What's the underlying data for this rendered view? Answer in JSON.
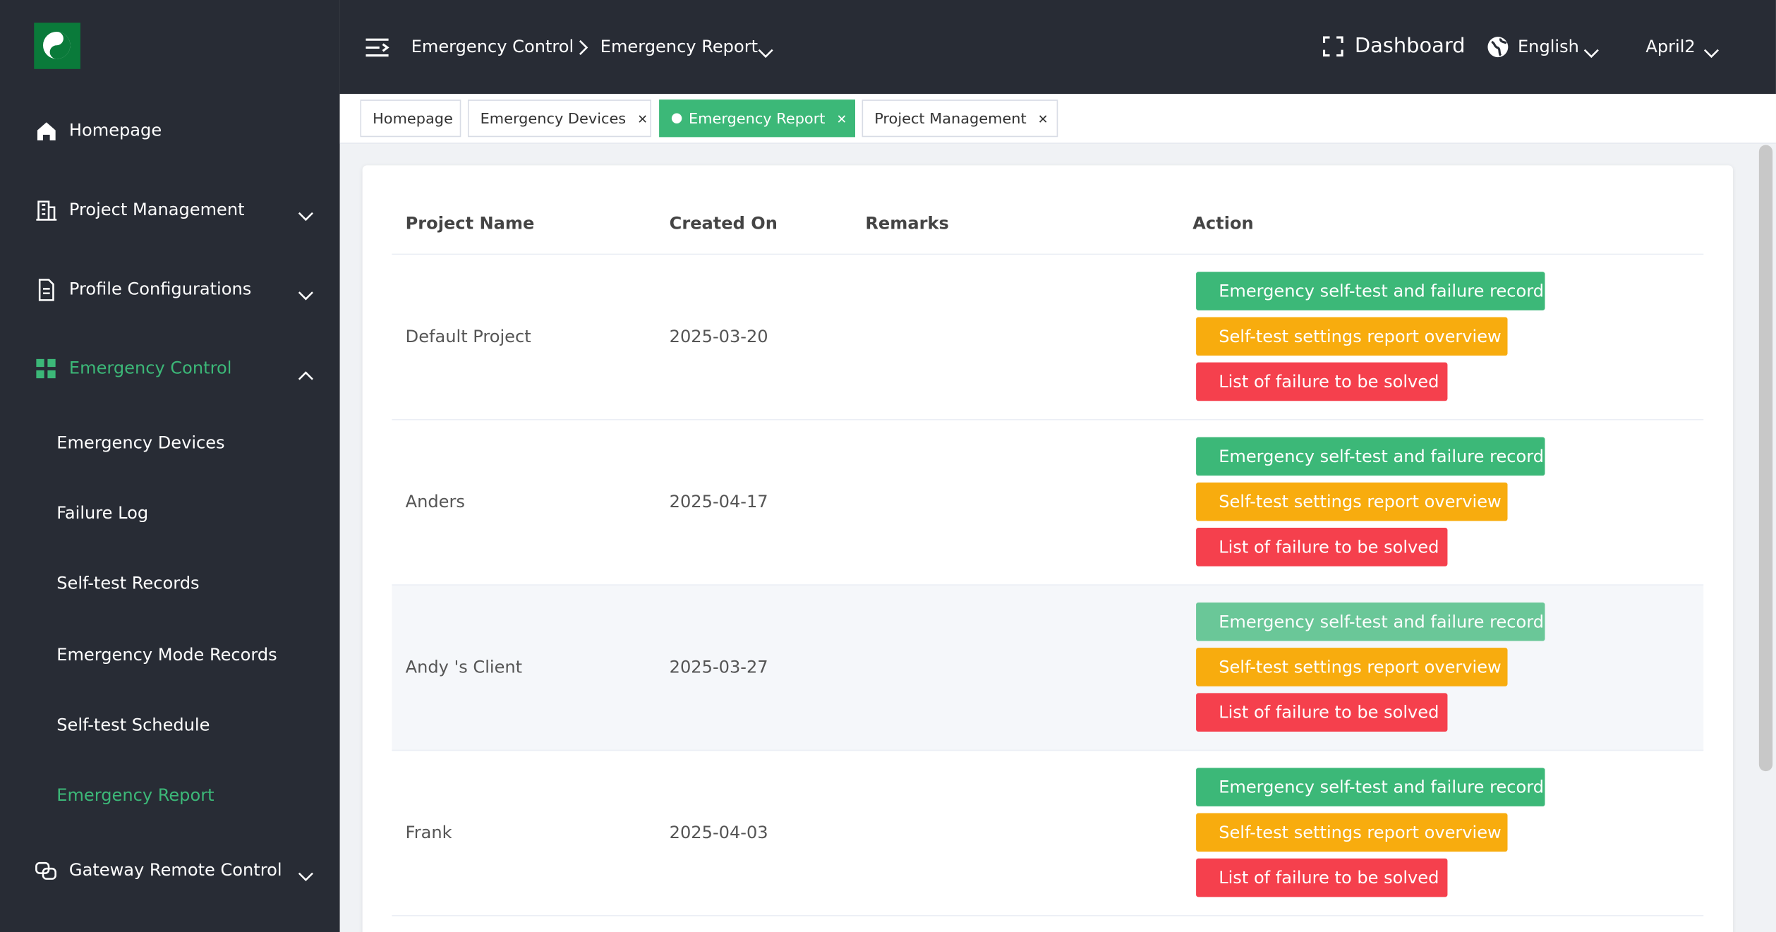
{
  "header": {
    "breadcrumb": [
      "Emergency Control",
      "Emergency Report"
    ],
    "dashboard": "Dashboard",
    "language": "English",
    "user": "April2"
  },
  "sidebar": {
    "items": [
      "Homepage",
      "Project Management",
      "Profile Configurations",
      "Emergency Control"
    ],
    "children": [
      "Emergency Devices",
      "Failure Log",
      "Self-test Records",
      "Emergency Mode Records",
      "Self-test Schedule",
      "Emergency Report"
    ],
    "last": "Gateway Remote Control"
  },
  "tabs": [
    "Homepage",
    "Emergency Devices",
    "Emergency Report",
    "Project Management"
  ],
  "table": {
    "columns": [
      "Project Name",
      "Created On",
      "Remarks",
      "Action"
    ],
    "rows": [
      [
        "Default Project",
        "2025-03-20"
      ],
      [
        "Anders",
        "2025-04-17"
      ],
      [
        "Andy 's Client",
        "2025-03-27"
      ],
      [
        "Frank",
        "2025-04-03"
      ]
    ],
    "actions": [
      "Emergency self-test and failure record",
      "Self-test settings report overview",
      "List of failure to be solved"
    ]
  }
}
